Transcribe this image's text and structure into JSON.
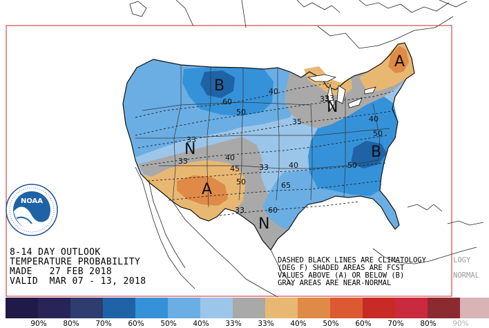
{
  "outlook": {
    "title_lines": [
      "8-14 DAY OUTLOOK",
      "TEMPERATURE PROBABILITY",
      "MADE   27 FEB 2018",
      "VALID  MAR 07 - 13, 2018"
    ],
    "notes": [
      "DASHED BLACK LINES ARE CLIMATOLOGY",
      "(DEG F) SHADED AREAS ARE FCST",
      "VALUES ABOVE (A) OR BELOW (B)",
      "GRAY AREAS ARE NEAR-NORMAL"
    ],
    "notes_overflow": {
      "line1": "LOGY",
      "line3": "NORMAL"
    }
  },
  "logo": {
    "text": "NOAA"
  },
  "region_letters": [
    {
      "id": "b-north-plains",
      "letter": "B"
    },
    {
      "id": "b-carolinas",
      "letter": "B"
    },
    {
      "id": "a-northeast",
      "letter": "A"
    },
    {
      "id": "a-southwest",
      "letter": "A"
    },
    {
      "id": "n-great-lakes",
      "letter": "N"
    },
    {
      "id": "n-central-rockies",
      "letter": "N"
    },
    {
      "id": "n-texas",
      "letter": "N"
    }
  ],
  "contour_labels": [
    "60",
    "50",
    "40",
    "35",
    "33",
    "33",
    "40",
    "45",
    "50",
    "33",
    "40",
    "65",
    "50",
    "40",
    "50",
    "33",
    "60",
    "33",
    "33"
  ],
  "legend": {
    "colors": [
      "#201a48",
      "#282458",
      "#2e3c70",
      "#1f63a6",
      "#3592d9",
      "#6aaee4",
      "#9bc6ea",
      "#a9a9a9",
      "#e8b873",
      "#e08a47",
      "#dc5a32",
      "#c82b26",
      "#c92a3e",
      "#8b2a31",
      "#d8b4b5",
      "#c49a9c"
    ],
    "labels": [
      "90%",
      "80%",
      "70%",
      "60%",
      "50%",
      "40%",
      "33%",
      "33%",
      "40%",
      "50%",
      "60%",
      "70%",
      "80%",
      "90%"
    ]
  }
}
